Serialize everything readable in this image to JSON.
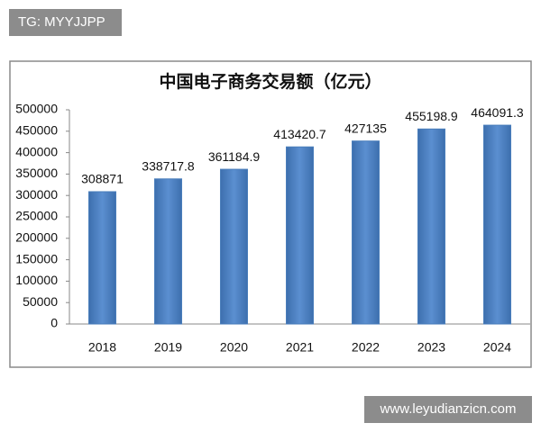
{
  "overlay_top": "TG: MYYJJPP",
  "overlay_bottom": "www.leyudianzicn.com",
  "chart_data": {
    "type": "bar",
    "title": "中国电子商务交易额（亿元）",
    "categories": [
      "2018",
      "2019",
      "2020",
      "2021",
      "2022",
      "2023",
      "2024"
    ],
    "values": [
      308871,
      338717.8,
      361184.9,
      413420.7,
      427135,
      455198.9,
      464091.3
    ],
    "color": "#4a7ebb",
    "ylim": [
      0,
      500000
    ],
    "yticks": [
      0,
      50000,
      100000,
      150000,
      200000,
      250000,
      300000,
      350000,
      400000,
      450000,
      500000
    ],
    "grid": false
  }
}
